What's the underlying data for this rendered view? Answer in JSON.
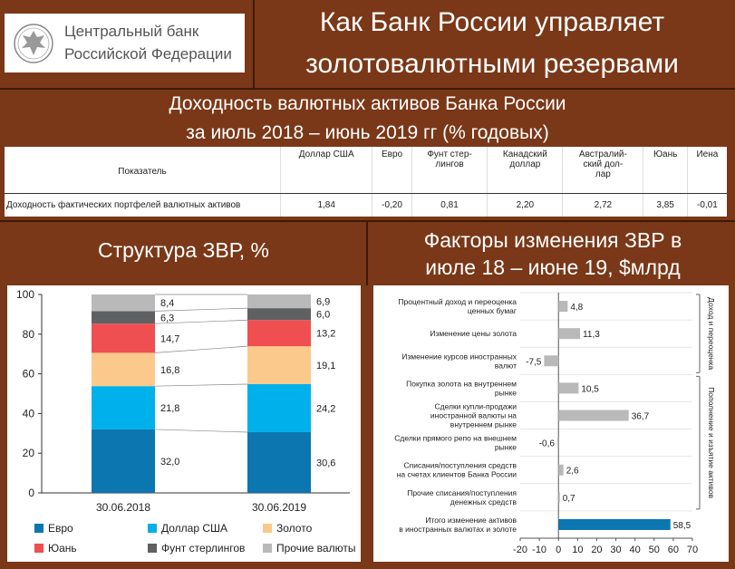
{
  "header": {
    "logo_line1": "Центральный банк",
    "logo_line2": "Российской Федерации",
    "title_line1": "Как Банк России управляет",
    "title_line2": "золотовалютными резервами"
  },
  "yield_section": {
    "title_line1": "Доходность валютных активов Банка России",
    "title_line2": "за июль 2018 – июнь 2019 гг (% годовых)",
    "table": {
      "header_label": "Показатель",
      "columns": [
        "Доллар США",
        "Евро",
        "Фунт стер-\nлингов",
        "Канадский\nдоллар",
        "Австралий-\nский дол-\nлар",
        "Юань",
        "Иена"
      ],
      "row_label": "Доходность фактических портфелей валютных активов",
      "values": [
        "1,84",
        "-0,20",
        "0,81",
        "2,20",
        "2,72",
        "3,85",
        "-0,01"
      ]
    }
  },
  "structure_section": {
    "title": "Структура ЗВР, %",
    "chart_data": {
      "type": "bar",
      "stacked": true,
      "categories": [
        "30.06.2018",
        "30.06.2019"
      ],
      "series": [
        {
          "name": "Евро",
          "color": "#0c76b0",
          "values": [
            32.0,
            30.6
          ],
          "labels": [
            "32,0",
            "30,6"
          ]
        },
        {
          "name": "Доллар США",
          "color": "#00b0ea",
          "values": [
            21.8,
            24.2
          ],
          "labels": [
            "21,8",
            "24,2"
          ]
        },
        {
          "name": "Золото",
          "color": "#fbc98c",
          "values": [
            16.8,
            19.1
          ],
          "labels": [
            "16,8",
            "19,1"
          ]
        },
        {
          "name": "Юань",
          "color": "#f04f52",
          "values": [
            14.7,
            13.2
          ],
          "labels": [
            "14,7",
            "13,2"
          ]
        },
        {
          "name": "Фунт стерлингов",
          "color": "#5f6062",
          "values": [
            6.3,
            6.0
          ],
          "labels": [
            "6,3",
            "6,0"
          ]
        },
        {
          "name": "Прочие валюты",
          "color": "#b9b9b9",
          "values": [
            8.4,
            6.9
          ],
          "labels": [
            "8,4",
            "6,9"
          ]
        }
      ],
      "ylim": [
        0,
        100
      ],
      "yticks": [
        "0",
        "20",
        "40",
        "60",
        "80",
        "100"
      ],
      "legend": "bottom"
    }
  },
  "factors_section": {
    "title_line1": "Факторы изменения ЗВР в",
    "title_line2": "июле 18 – июне 19, $млрд",
    "chart_data": {
      "type": "bar",
      "orientation": "horizontal",
      "categories": [
        [
          "Процентный доход и переоценка",
          "ценных бумаг"
        ],
        [
          "Изменение цены золота"
        ],
        [
          "Изменение курсов иностранных",
          "валют"
        ],
        [
          "Покупка золота на внутреннем",
          "рынке"
        ],
        [
          "Сделки купли-продажи",
          "иностранной валюты на",
          "внутреннем рынке"
        ],
        [
          "Сделки прямого репо на внешнем",
          "рынке"
        ],
        [
          "Списания/поступления средств",
          "на счетах клиентов Банка России"
        ],
        [
          "Прочие списания/поступления",
          "денежных средств"
        ],
        [
          "Итого изменение активов",
          "в иностранных валютах и золоте"
        ]
      ],
      "values": [
        4.8,
        11.3,
        -7.5,
        10.5,
        36.7,
        -0.6,
        2.6,
        0.7,
        58.5
      ],
      "labels": [
        "4,8",
        "11,3",
        "-7,5",
        "10,5",
        "36,7",
        "-0,6",
        "2,6",
        "0,7",
        "58,5"
      ],
      "colors": {
        "bar": "#b9b9b9",
        "total": "#0c76b0"
      },
      "xlim": [
        -20,
        70
      ],
      "xticks": [
        "-20",
        "-10",
        "0",
        "10",
        "20",
        "30",
        "40",
        "50",
        "60",
        "70"
      ],
      "group_labels": [
        "Доход и переоценка",
        "Пополнение и изъятие активов"
      ]
    }
  }
}
